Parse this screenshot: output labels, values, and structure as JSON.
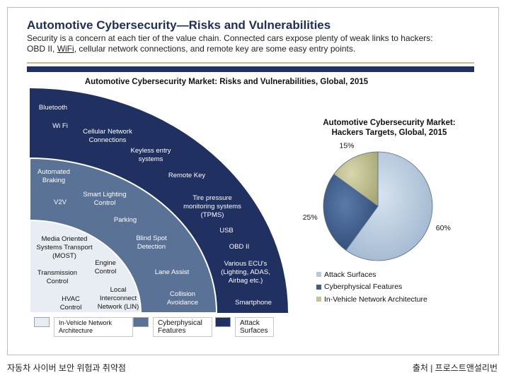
{
  "header": {
    "title": "Automotive Cybersecurity—Risks and Vulnerabilities",
    "subtitle_line1": "Security is a concern at each tier of the value chain. Connected cars expose plenty of weak links to hackers:",
    "subtitle_line2_pre": "OBD II, ",
    "subtitle_line2_link": "WiFi",
    "subtitle_line2_post": ", cellular network connections, and remote key are some easy entry points."
  },
  "footer": {
    "caption": "자동차 사이버 보안 위험과 취약점",
    "source": "출처 | 프로스트앤설리번"
  },
  "colors": {
    "title": "#1d2f5a",
    "outer_band": "#1f3061",
    "middle_band": "#5a7295",
    "inner_band": "#e8edf3",
    "pie_attack": "#b7c9dc",
    "pie_cyber": "#3e5d8c",
    "pie_invehicle": "#c4c394",
    "divider_gold": "#c6bd8f"
  },
  "chart_data": [
    {
      "type": "table",
      "title": "Automotive Cybersecurity Market: Risks and Vulnerabilities, Global, 2015",
      "layers": [
        {
          "name": "Attack Surfaces",
          "items": [
            "Bluetooth",
            "Wi Fi",
            "Cellular Network Connections",
            "Keyless entry systems",
            "Remote Key",
            "Tire pressure monitoring systems (TPMS)",
            "USB",
            "OBD II",
            "Various ECU's (Lighting, ADAS, Airbag etc.)",
            "Smartphone"
          ]
        },
        {
          "name": "Cyberphysical Features",
          "items": [
            "Automated Braking",
            "Smart Lighting Control",
            "V2V",
            "Parking",
            "Blind Spot Detection",
            "Lane Assist",
            "Collision Avoidance"
          ]
        },
        {
          "name": "In-Vehicle Network Architecture",
          "items": [
            "Media Oriented Systems Transport (MOST)",
            "Engine Control",
            "Transmission Control",
            "Local Interconnect Network (LIN)",
            "HVAC Control"
          ]
        }
      ],
      "legend": [
        "In-Vehicle Network Architecture",
        "Cyberphysical Features",
        "Attack Surfaces"
      ]
    },
    {
      "type": "pie",
      "title_line1": "Automotive Cybersecurity Market:",
      "title_line2": "Hackers Targets, Global, 2015",
      "categories": [
        "Attack Surfaces",
        "Cyberphysical Features",
        "In-Vehicle Network Architecture"
      ],
      "values": [
        60,
        25,
        15
      ],
      "value_labels": [
        "60%",
        "25%",
        "15%"
      ],
      "colors": [
        "#b7c9dc",
        "#3e5d8c",
        "#c4c394"
      ]
    }
  ]
}
